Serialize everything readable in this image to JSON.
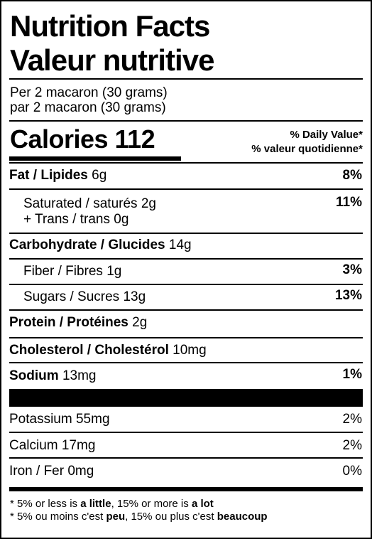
{
  "header": {
    "title_en": "Nutrition Facts",
    "title_fr": "Valeur nutritive",
    "serving_en": "Per 2 macaron (30 grams)",
    "serving_fr": "par 2 macaron (30 grams)"
  },
  "calories": {
    "label": "Calories",
    "value": "112"
  },
  "daily_value_header": {
    "en": "% Daily Value*",
    "fr": "% valeur quotidienne*"
  },
  "nutrients": {
    "fat": {
      "name": "Fat / Lipides",
      "amount": "6g",
      "dv": "8%"
    },
    "saturated": {
      "name": "Saturated / saturés",
      "amount": "2g",
      "dv": "11%"
    },
    "trans": {
      "name": "+ Trans / trans",
      "amount": "0g"
    },
    "carbohydrate": {
      "name": "Carbohydrate / Glucides",
      "amount": "14g"
    },
    "fiber": {
      "name": "Fiber / Fibres",
      "amount": "1g",
      "dv": "3%"
    },
    "sugars": {
      "name": "Sugars / Sucres",
      "amount": "13g",
      "dv": "13%"
    },
    "protein": {
      "name": "Protein / Protéines",
      "amount": "2g"
    },
    "cholesterol": {
      "name": "Cholesterol / Cholestérol",
      "amount": "10mg"
    },
    "sodium": {
      "name": "Sodium",
      "amount": "13mg",
      "dv": "1%"
    }
  },
  "minerals": {
    "potassium": {
      "name": "Potassium",
      "amount": "55mg",
      "dv": "2%"
    },
    "calcium": {
      "name": "Calcium",
      "amount": "17mg",
      "dv": "2%"
    },
    "iron": {
      "name": "Iron / Fer",
      "amount": "0mg",
      "dv": "0%"
    }
  },
  "footnote": {
    "en_prefix": "* 5% or less is ",
    "en_little": "a little",
    "en_mid": ", 15% or more is ",
    "en_lot": "a lot",
    "fr_prefix": "* 5% ou moins c'est ",
    "fr_peu": "peu",
    "fr_mid": ", 15% ou plus c'est ",
    "fr_beaucoup": "beaucoup"
  }
}
